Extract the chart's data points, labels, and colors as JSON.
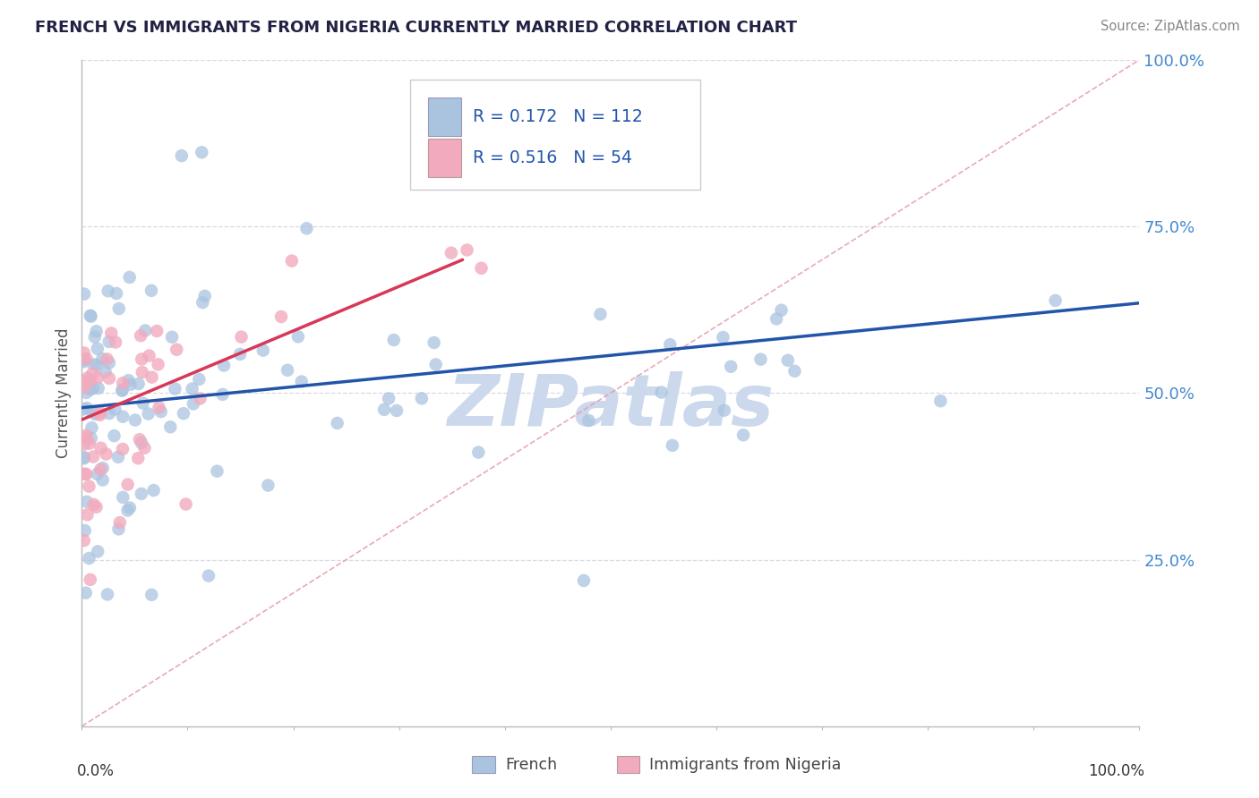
{
  "title": "FRENCH VS IMMIGRANTS FROM NIGERIA CURRENTLY MARRIED CORRELATION CHART",
  "source": "Source: ZipAtlas.com",
  "ylabel": "Currently Married",
  "legend_french_R": "R = 0.172",
  "legend_french_N": "N = 112",
  "legend_nigeria_R": "R = 0.516",
  "legend_nigeria_N": "N = 54",
  "french_color": "#aac4e0",
  "nigeria_color": "#f2aabe",
  "french_line_color": "#2255aa",
  "nigeria_line_color": "#d83858",
  "diagonal_color": "#e8a0b0",
  "watermark": "ZIPatlas",
  "watermark_color": "#ccd8ec",
  "n_french": 112,
  "n_nigeria": 54,
  "xlim": [
    0,
    1.0
  ],
  "ylim": [
    0,
    1.0
  ],
  "yticks": [
    0.25,
    0.5,
    0.75,
    1.0
  ],
  "ytick_labels": [
    "25.0%",
    "50.0%",
    "75.0%",
    "100.0%"
  ],
  "french_line": {
    "x": [
      0.0,
      1.0
    ],
    "y": [
      0.478,
      0.635
    ]
  },
  "nigeria_line": {
    "x": [
      0.0,
      0.36
    ],
    "y": [
      0.46,
      0.7
    ]
  },
  "background_color": "#ffffff",
  "grid_color": "#d8d8e8",
  "tick_color": "#4488cc",
  "title_color": "#222244",
  "source_color": "#888888",
  "legend_text_color_blue": "#2255aa",
  "legend_text_color_N_french": "#2255aa",
  "legend_text_color_N_nigeria": "#2255aa"
}
